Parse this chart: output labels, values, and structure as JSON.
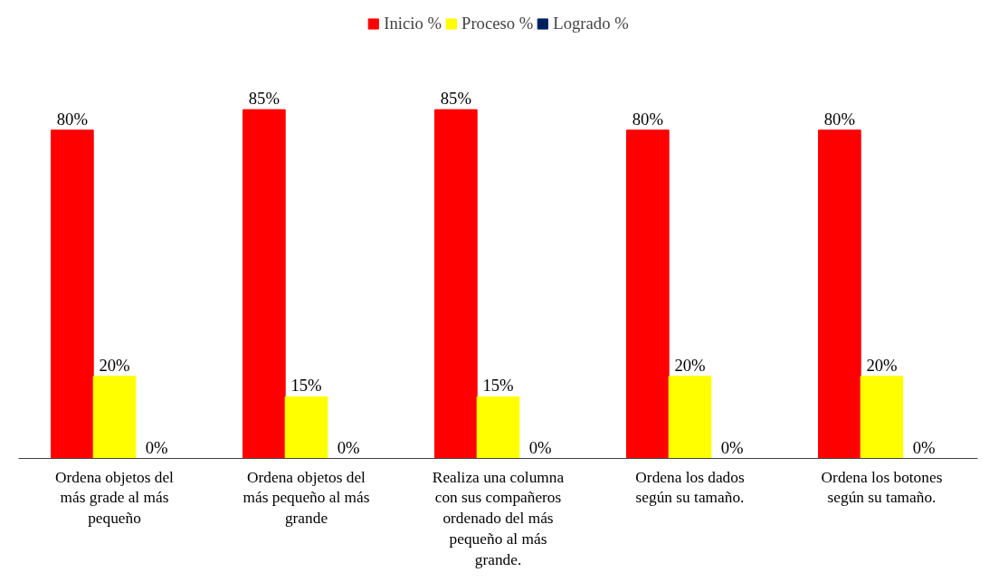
{
  "chart_data": {
    "type": "bar",
    "categories": [
      "Ordena objetos del más grade al más pequeño",
      "Ordena objetos del más pequeño al más grande",
      "Realiza una columna con sus compañeros ordenado del más pequeño al más grande.",
      "Ordena los dados según su tamaño.",
      "Ordena los botones según su tamaño."
    ],
    "series": [
      {
        "name": "Inicio %",
        "color": "#ff0000",
        "values": [
          80,
          85,
          85,
          80,
          80
        ],
        "value_labels": [
          "80%",
          "85%",
          "85%",
          "80%",
          "80%"
        ]
      },
      {
        "name": "Proceso %",
        "color": "#ffff00",
        "values": [
          20,
          15,
          15,
          20,
          20
        ],
        "value_labels": [
          "20%",
          "15%",
          "15%",
          "20%",
          "20%"
        ]
      },
      {
        "name": "Logrado %",
        "color": "#002060",
        "values": [
          0,
          0,
          0,
          0,
          0
        ],
        "value_labels": [
          "0%",
          "0%",
          "0%",
          "0%",
          "0%"
        ]
      }
    ],
    "legend": "top"
  }
}
